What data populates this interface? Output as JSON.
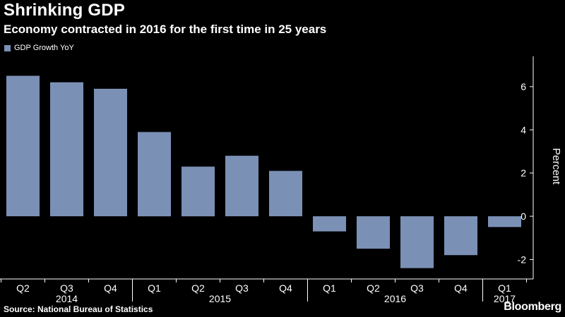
{
  "title": "Shrinking GDP",
  "subtitle": "Economy contracted in 2016 for the first time in 25 years",
  "source": "Source: National Bureau of Statistics",
  "brand": "Bloomberg",
  "colors": {
    "background": "#000000",
    "bar": "#7b90b5",
    "axis": "#ffffff",
    "text": "#ffffff"
  },
  "chart_data": {
    "type": "bar",
    "categories": [
      "Q2",
      "Q3",
      "Q4",
      "Q1",
      "Q2",
      "Q3",
      "Q4",
      "Q1",
      "Q2",
      "Q3",
      "Q4",
      "Q1"
    ],
    "year_groups": [
      {
        "label": "2014",
        "start": 0,
        "end": 2
      },
      {
        "label": "2015",
        "start": 3,
        "end": 6
      },
      {
        "label": "2016",
        "start": 7,
        "end": 10
      },
      {
        "label": "2017",
        "start": 11,
        "end": 11
      }
    ],
    "series": [
      {
        "name": "GDP Growth YoY",
        "values": [
          6.5,
          6.2,
          5.9,
          3.9,
          2.3,
          2.8,
          2.1,
          -0.7,
          -1.5,
          -2.4,
          -1.8,
          -0.5
        ]
      }
    ],
    "ylabel": "Percent",
    "ylim": [
      -2.9,
      7.4
    ],
    "yticks": [
      -2,
      0,
      2,
      4,
      6
    ],
    "y_axis_side": "right",
    "grid": false,
    "legend": "top-left"
  }
}
